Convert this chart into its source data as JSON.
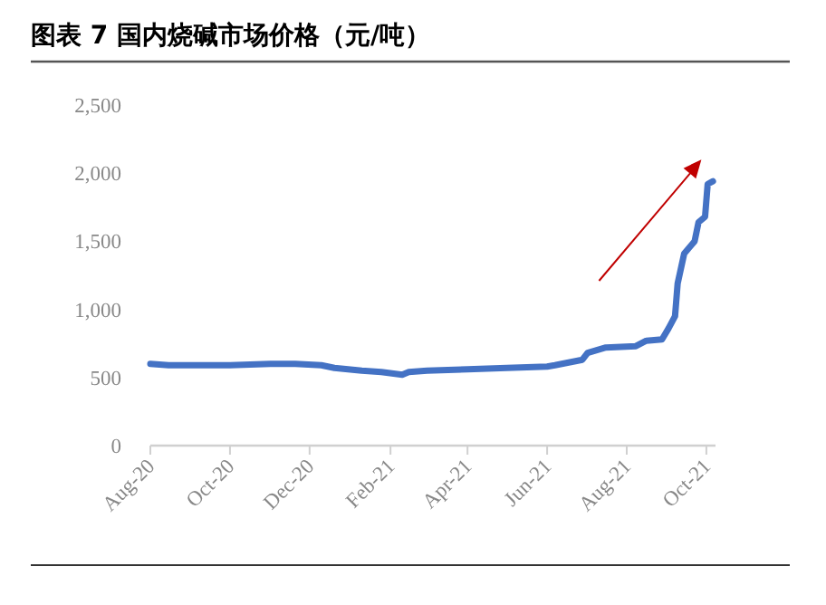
{
  "chart_data": {
    "type": "line",
    "title": "图表 7 国内烧碱市场价格（元/吨）",
    "x": [
      "2020-08-01",
      "2020-08-15",
      "2020-09-01",
      "2020-10-01",
      "2020-11-01",
      "2020-11-20",
      "2020-12-10",
      "2020-12-20",
      "2021-01-10",
      "2021-01-25",
      "2021-02-10",
      "2021-02-15",
      "2021-03-01",
      "2021-04-01",
      "2021-05-01",
      "2021-06-01",
      "2021-06-07",
      "2021-06-28",
      "2021-07-02",
      "2021-07-16",
      "2021-08-08",
      "2021-08-16",
      "2021-08-28",
      "2021-09-02",
      "2021-09-07",
      "2021-09-09",
      "2021-09-14",
      "2021-09-22",
      "2021-09-25",
      "2021-09-30",
      "2021-10-02",
      "2021-10-06"
    ],
    "series": [
      {
        "color": "#4472c4",
        "values": [
          600,
          590,
          590,
          590,
          600,
          600,
          590,
          570,
          550,
          540,
          520,
          540,
          550,
          560,
          570,
          580,
          590,
          630,
          680,
          720,
          730,
          770,
          780,
          860,
          950,
          1190,
          1410,
          1500,
          1640,
          1680,
          1920,
          1940
        ]
      }
    ],
    "xlim": [
      "2020-08-01",
      "2021-10-08"
    ],
    "xticks": [
      {
        "value": "2020-08-01",
        "label": "Aug-20"
      },
      {
        "value": "2020-10-01",
        "label": "Oct-20"
      },
      {
        "value": "2020-12-01",
        "label": "Dec-20"
      },
      {
        "value": "2021-02-01",
        "label": "Feb-21"
      },
      {
        "value": "2021-04-01",
        "label": "Apr-21"
      },
      {
        "value": "2021-06-01",
        "label": "Jun-21"
      },
      {
        "value": "2021-08-01",
        "label": "Aug-21"
      },
      {
        "value": "2021-10-01",
        "label": "Oct-21"
      }
    ],
    "ylim": [
      0,
      2500
    ],
    "yticks": [
      0,
      500,
      {
        "value": 1000,
        "label": "1,000"
      },
      {
        "value": 1500,
        "label": "1,500"
      },
      {
        "value": 2000,
        "label": "2,000"
      },
      {
        "value": 2500,
        "label": "2,500"
      }
    ],
    "grid": false,
    "marker": "none",
    "line_style": "solid"
  }
}
